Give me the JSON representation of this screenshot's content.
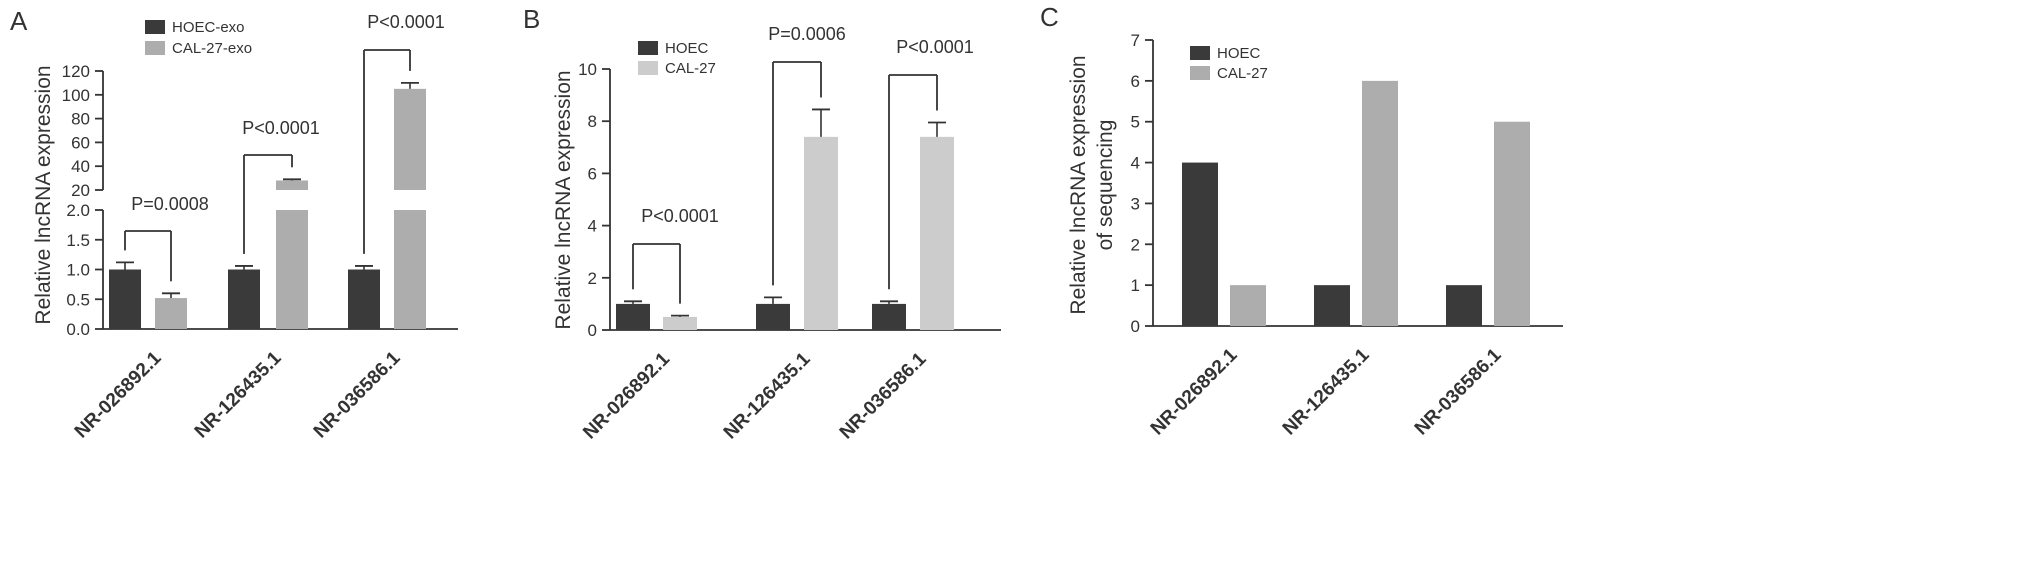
{
  "chart_data": [
    {
      "type": "bar",
      "panel_label": "A",
      "title": "",
      "ylabel": "Relative lncRNA expression",
      "categories": [
        "NR-026892.1",
        "NR-126435.1",
        "NR-036586.1"
      ],
      "series": [
        {
          "name": "HOEC-exo",
          "values": [
            1.0,
            1.0,
            1.0
          ],
          "errors": [
            0.12,
            0.06,
            0.06
          ],
          "color": "#3a3a3a"
        },
        {
          "name": "CAL-27-exo",
          "values": [
            0.52,
            28,
            105
          ],
          "errors": [
            0.08,
            1,
            5
          ],
          "color": "#adadad"
        }
      ],
      "y_axis": {
        "broken": true,
        "lower": {
          "ylim": [
            0,
            2.0
          ],
          "ticks": [
            "0.0",
            "0.5",
            "1.0",
            "1.5",
            "2.0"
          ]
        },
        "upper": {
          "ylim": [
            20,
            120
          ],
          "ticks": [
            "20",
            "40",
            "60",
            "80",
            "100",
            "120"
          ]
        }
      },
      "annotations": [
        "P=0.0008",
        "P<0.0001",
        "P<0.0001"
      ],
      "legend": "top-left"
    },
    {
      "type": "bar",
      "panel_label": "B",
      "title": "",
      "ylabel": "Relative lncRNA expression",
      "categories": [
        "NR-026892.1",
        "NR-126435.1",
        "NR-036586.1"
      ],
      "series": [
        {
          "name": "HOEC",
          "values": [
            1.0,
            1.0,
            1.0
          ],
          "errors": [
            0.1,
            0.25,
            0.1
          ],
          "color": "#3a3a3a"
        },
        {
          "name": "CAL-27",
          "values": [
            0.5,
            7.4,
            7.4
          ],
          "errors": [
            0.05,
            1.05,
            0.55
          ],
          "color": "#cccccc"
        }
      ],
      "ylim": [
        0,
        10
      ],
      "ticks": [
        "0",
        "2",
        "4",
        "6",
        "8",
        "10"
      ],
      "annotations": [
        "P<0.0001",
        "P=0.0006",
        "P<0.0001"
      ],
      "legend": "top-left"
    },
    {
      "type": "bar",
      "panel_label": "C",
      "title": "",
      "ylabel_lines": [
        "Relative lncRNA expression",
        "of sequencing"
      ],
      "categories": [
        "NR-026892.1",
        "NR-126435.1",
        "NR-036586.1"
      ],
      "series": [
        {
          "name": "HOEC",
          "values": [
            4,
            1,
            1
          ],
          "color": "#3a3a3a"
        },
        {
          "name": "CAL-27",
          "values": [
            1,
            6,
            5
          ],
          "color": "#adadad"
        }
      ],
      "ylim": [
        0,
        7
      ],
      "ticks": [
        "0",
        "1",
        "2",
        "3",
        "4",
        "5",
        "6",
        "7"
      ],
      "legend": "top-left"
    }
  ]
}
